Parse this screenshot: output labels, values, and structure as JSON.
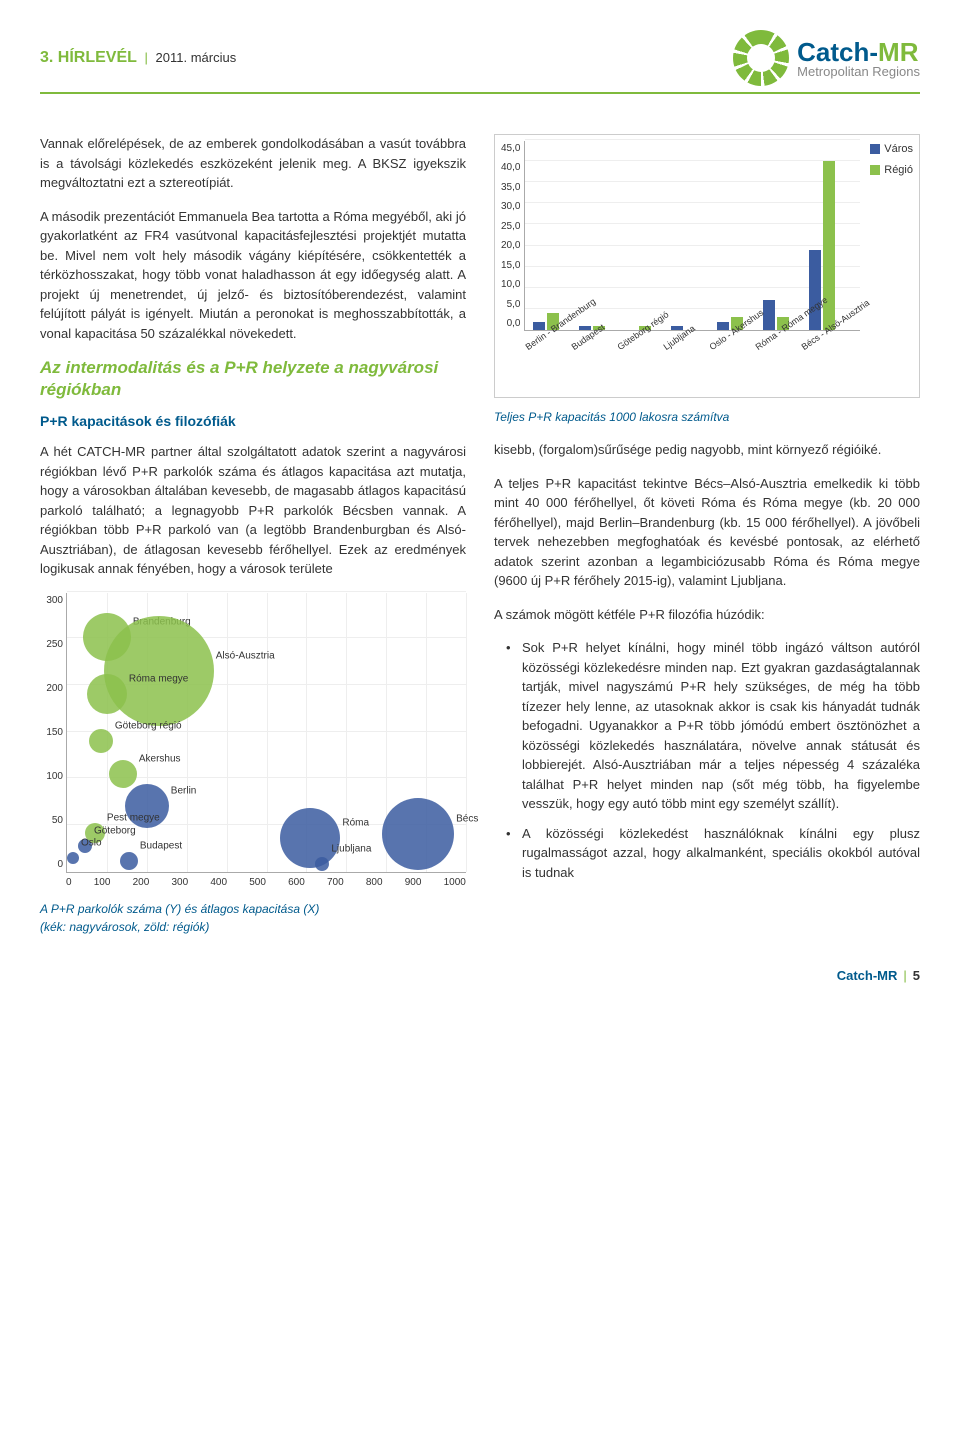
{
  "header": {
    "issue": "3. HÍRLEVÉL",
    "date": "2011. március"
  },
  "logo": {
    "main1": "Catch-",
    "main2": "MR",
    "sub": "Metropolitan Regions"
  },
  "left": {
    "p1": "Vannak előrelépések, de az emberek gondolkodásában a vasút továbbra is a távolsági közlekedés eszközeként jelenik meg. A BKSZ igyekszik megváltoztatni ezt a sztereotípiát.",
    "p2a": "A második prezentációt Emmanuela Bea tartotta a Róma megyéből, aki jó gyakorlatként az FR4 vasútvonal kapacitásfejlesztési projektjét mutatta be. Mivel nem volt hely második vágány kiépítésére, csökkentették a térközhosszakat, hogy több vonat haladhasson át egy időegység alatt. A projekt új menetrendet, új jelző- és biztosítóberendezést, valamint felújított pályát is igényelt. Miután a peronokat is meghosszabbították, a vonal kapacitása 50 százalékkal növekedett.",
    "sect_title": "Az intermodalitás és a P+R helyzete a nagyvárosi régiókban",
    "sect_sub": "P+R kapacitások és filozófiák",
    "p3": "A hét CATCH-MR partner által szolgáltatott adatok szerint a nagyvárosi régiókban lévő P+R parkolók száma és átlagos kapacitása azt mutatja, hogy a városokban általában kevesebb, de magasabb átlagos kapacitású parkoló található; a legnagyobb P+R parkolók Bécsben vannak. A régiókban több P+R parkoló van (a legtöbb Brandenburgban és Alsó-Ausztriában), de átlagosan kevesebb férőhellyel. Ezek az eredmények logikusak annak fényében, hogy a városok területe",
    "fig2_caption_l1": "A P+R parkolók száma (Y) és átlagos kapacitása (X)",
    "fig2_caption_l2": "(kék: nagyvárosok, zöld: régiók)"
  },
  "right": {
    "fig1_caption": "Teljes P+R kapacitás 1000 lakosra számítva",
    "p1": "kisebb, (forgalom)sűrűsége pedig nagyobb, mint környező régióiké.",
    "p2": "A teljes P+R kapacitást tekintve Bécs–Alsó-Ausztria emelkedik ki több mint 40 000 férőhellyel, őt követi Róma és Róma megye (kb. 20 000 férőhellyel), majd Berlin–Brandenburg (kb. 15 000 férőhellyel). A jövőbeli tervek nehezebben megfoghatóak és kevésbé pontosak, az elérhető adatok szerint azonban a legambiciózusabb Róma és Róma megye (9600 új P+R férőhely 2015-ig), valamint Ljubljana.",
    "p3": "A számok mögött kétféle P+R filozófia húzódik:",
    "b1": "Sok P+R helyet kínálni, hogy minél több ingázó váltson autóról közösségi közlekedésre minden nap. Ezt gyakran gazdaságtalannak tartják, mivel nagyszámú P+R hely szükséges, de még ha több tízezer hely lenne, az utasoknak akkor is csak kis hányadát tudnák befogadni. Ugyanakkor a P+R több jómódú embert ösztönözhet a közösségi közlekedés használatára, növelve annak státusát és lobbierejét. Alsó-Ausztriában már a teljes népesség 4 százaléka találhat P+R helyet minden nap (sőt még több, ha figyelembe vesszük, hogy egy autó több mint egy személyt szállít).",
    "b2": "A közösségi közlekedést használóknak kínálni egy plusz rugalmasságot azzal, hogy alkalmanként, speciális okokból autóval is tudnak"
  },
  "bar_chart": {
    "ylim": [
      0,
      45
    ],
    "ystep": 5,
    "categories": [
      "Berlin - Brandenburg",
      "Budapest",
      "Göteborg régió",
      "Ljubljana",
      "Oslo - Akershus",
      "Róma - Róma megye",
      "Bécs - Alsó-Ausztria"
    ],
    "series": [
      {
        "name": "Város",
        "color": "#3b5ca0",
        "values": [
          2,
          1,
          0,
          1,
          2,
          7,
          19
        ]
      },
      {
        "name": "Régió",
        "color": "#8cc14c",
        "values": [
          4,
          1,
          1,
          0,
          3,
          3,
          40
        ]
      }
    ],
    "grid_color": "#eeeeee",
    "axis_color": "#aaaaaa",
    "bg": "#ffffff"
  },
  "bubble_chart": {
    "xlim": [
      0,
      1000
    ],
    "xstep": 100,
    "ylim": [
      0,
      300
    ],
    "ystep": 50,
    "city_color": "#3b5ca0",
    "region_color": "#8cc14c",
    "grid_color": "#eeeeee",
    "bubbles": [
      {
        "label": "Brandenburg",
        "x": 100,
        "y": 252,
        "r": 24,
        "type": "region"
      },
      {
        "label": "Alsó-Ausztria",
        "x": 230,
        "y": 215,
        "r": 55,
        "type": "region"
      },
      {
        "label": "Róma megye",
        "x": 100,
        "y": 190,
        "r": 20,
        "type": "region"
      },
      {
        "label": "Göteborg régió",
        "x": 85,
        "y": 140,
        "r": 12,
        "type": "region"
      },
      {
        "label": "Akershus",
        "x": 140,
        "y": 105,
        "r": 14,
        "type": "region"
      },
      {
        "label": "Berlin",
        "x": 200,
        "y": 70,
        "r": 22,
        "type": "city"
      },
      {
        "label": "Pest megye",
        "x": 70,
        "y": 42,
        "r": 10,
        "type": "region"
      },
      {
        "label": "Göteborg",
        "x": 45,
        "y": 28,
        "r": 7,
        "type": "city"
      },
      {
        "label": "Oslo",
        "x": 15,
        "y": 15,
        "r": 6,
        "type": "city"
      },
      {
        "label": "Budapest",
        "x": 155,
        "y": 12,
        "r": 9,
        "type": "city"
      },
      {
        "label": "Róma",
        "x": 610,
        "y": 36,
        "r": 30,
        "type": "city"
      },
      {
        "label": "Ljubljana",
        "x": 640,
        "y": 8,
        "r": 7,
        "type": "city"
      },
      {
        "label": "Bécs",
        "x": 880,
        "y": 40,
        "r": 36,
        "type": "city"
      }
    ]
  },
  "footer": {
    "brand": "Catch-MR",
    "page": "5"
  }
}
